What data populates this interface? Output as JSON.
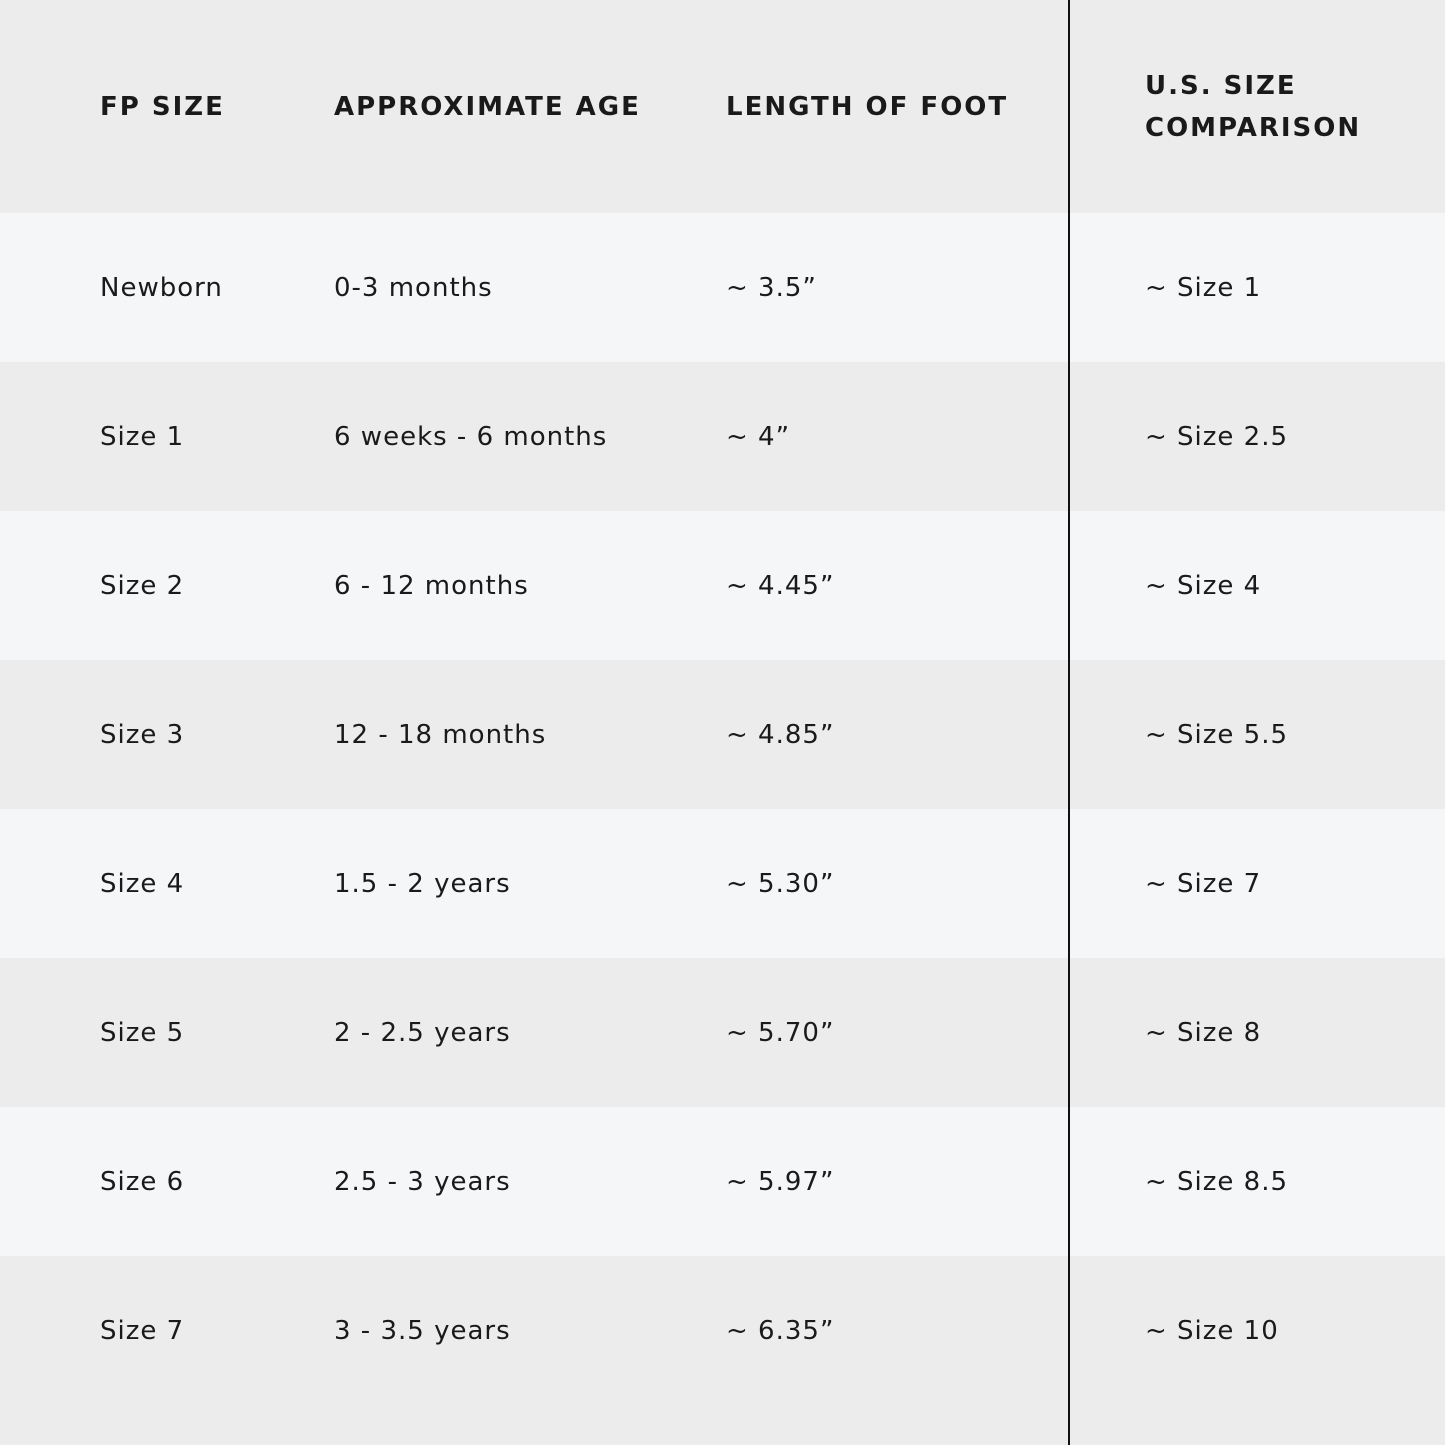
{
  "table": {
    "headers": [
      "FP SIZE",
      "APPROXIMATE AGE",
      "LENGTH OF FOOT",
      "U.S. SIZE\nCOMPARISON"
    ],
    "rows": [
      [
        "Newborn",
        "0-3 months",
        "~ 3.5”",
        "~ Size 1"
      ],
      [
        "Size 1",
        "6 weeks - 6 months",
        "~ 4”",
        "~ Size 2.5"
      ],
      [
        "Size 2",
        "6 - 12 months",
        "~ 4.45”",
        "~ Size 4"
      ],
      [
        "Size 3",
        "12 - 18 months",
        "~ 4.85”",
        "~ Size 5.5"
      ],
      [
        "Size 4",
        "1.5 - 2 years",
        "~ 5.30”",
        "~ Size 7"
      ],
      [
        "Size 5",
        "2 - 2.5 years",
        "~ 5.70”",
        "~ Size 8"
      ],
      [
        "Size 6",
        "2.5 - 3 years",
        "~ 5.97”",
        "~ Size 8.5"
      ],
      [
        "Size 7",
        "3 - 3.5 years",
        "~ 6.35”",
        "~ Size 10"
      ]
    ]
  }
}
